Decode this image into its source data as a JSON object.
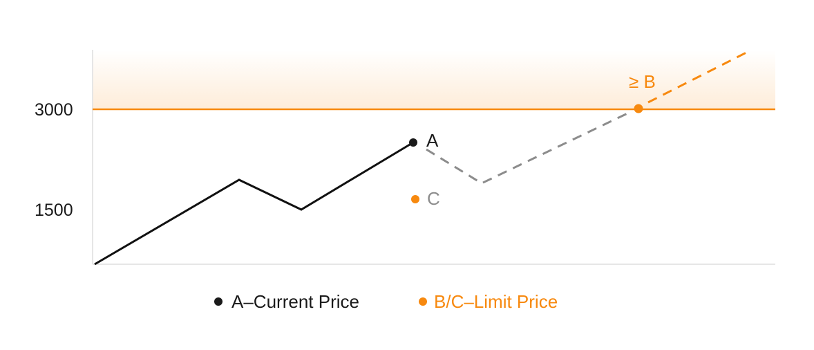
{
  "y_ticks": [
    "3000",
    "1500"
  ],
  "labels": {
    "a": "A",
    "b": "≥ B",
    "c": "C"
  },
  "legend": [
    {
      "label": "A–Current Price",
      "color": "#1a1a1a"
    },
    {
      "label": "B/C–Limit Price",
      "color": "#f7890f"
    }
  ],
  "colors": {
    "accent": "#f7890f",
    "price_line": "#111111",
    "projection": "#8c8c8c",
    "axis": "#e6e6e6"
  }
}
